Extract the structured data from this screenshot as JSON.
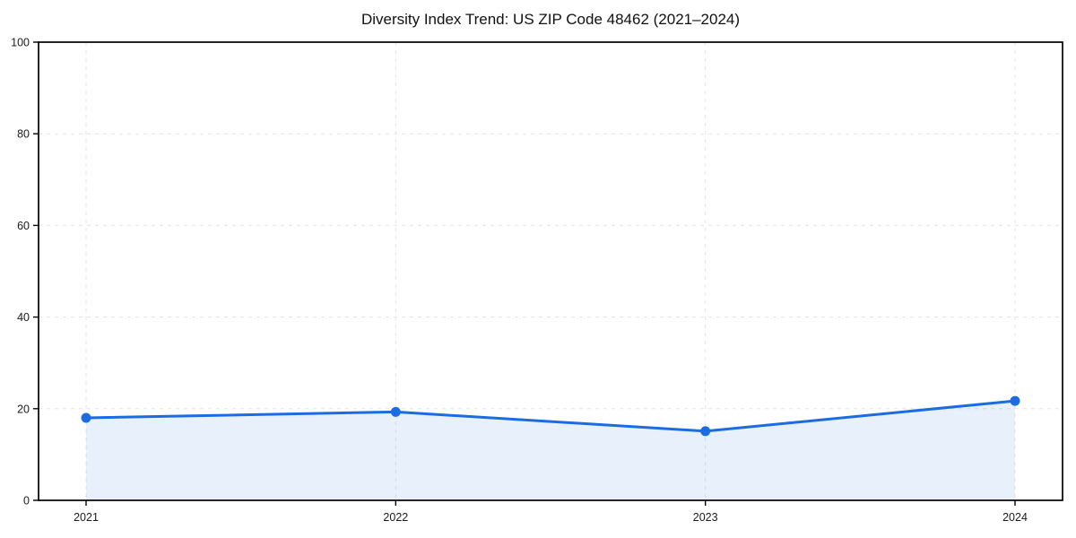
{
  "chart_data": {
    "type": "area",
    "title": "Diversity Index Trend: US ZIP Code 48462 (2021–2024)",
    "x": [
      "2021",
      "2022",
      "2023",
      "2024"
    ],
    "values": [
      18.0,
      19.3,
      15.1,
      21.7
    ],
    "xlabel": "",
    "ylabel": "",
    "ylim": [
      0,
      100
    ],
    "yticks": [
      0,
      20,
      40,
      60,
      80,
      100
    ],
    "grid": true,
    "grid_style": "dashed",
    "legend": "none",
    "line_color": "#1b6ce3",
    "marker_color": "#1b6ce3",
    "fill_color": "rgba(27,108,227,0.10)",
    "grid_color": "#e4e4e4",
    "spine_color": "#000000",
    "background": "#ffffff"
  }
}
